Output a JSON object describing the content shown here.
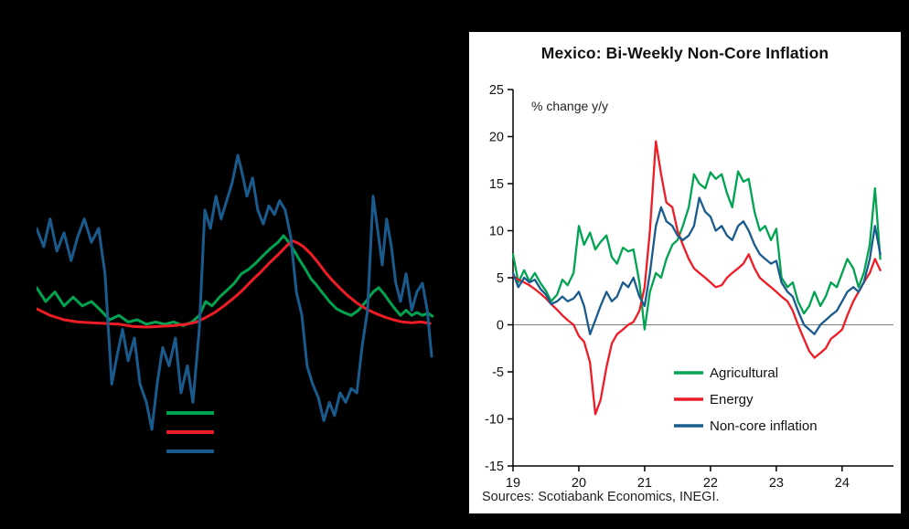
{
  "page": {
    "background_color": "#000000"
  },
  "chart_data": [
    {
      "type": "line",
      "panel": "right",
      "title": "Mexico: Bi-Weekly Non-Core Inflation",
      "ylabel_annotation": "% change y/y",
      "source": "Sources: Scotiabank Economics, INEGI.",
      "x_tick_labels": [
        "19",
        "20",
        "21",
        "22",
        "23",
        "24"
      ],
      "y_ticks": [
        25,
        20,
        15,
        10,
        5,
        0,
        -5,
        -10,
        -15
      ],
      "ylim": [
        -15,
        25
      ],
      "xlim": [
        19,
        24.78
      ],
      "grid": false,
      "zero_line": true,
      "legend_position": "inside-lower-right",
      "x": [
        19.0,
        19.08,
        19.17,
        19.25,
        19.33,
        19.42,
        19.5,
        19.58,
        19.67,
        19.75,
        19.83,
        19.92,
        20.0,
        20.08,
        20.17,
        20.25,
        20.33,
        20.42,
        20.5,
        20.58,
        20.67,
        20.75,
        20.83,
        20.92,
        21.0,
        21.08,
        21.17,
        21.25,
        21.33,
        21.42,
        21.5,
        21.58,
        21.67,
        21.75,
        21.83,
        21.92,
        22.0,
        22.08,
        22.17,
        22.25,
        22.33,
        22.42,
        22.5,
        22.58,
        22.67,
        22.75,
        22.83,
        22.92,
        23.0,
        23.08,
        23.17,
        23.25,
        23.33,
        23.42,
        23.5,
        23.58,
        23.67,
        23.75,
        23.83,
        23.92,
        24.0,
        24.08,
        24.17,
        24.25,
        24.33,
        24.42,
        24.5,
        24.58
      ],
      "series": [
        {
          "name": "Agricultural",
          "color": "#00A350",
          "values": [
            7.5,
            4.5,
            5.8,
            4.6,
            5.5,
            4.4,
            3.6,
            2.5,
            3.2,
            4.8,
            4.2,
            5.5,
            10.5,
            8.5,
            9.8,
            8.0,
            8.8,
            9.5,
            7.2,
            6.5,
            8.2,
            7.8,
            8.0,
            4.5,
            -0.5,
            3.5,
            5.5,
            5.0,
            7.0,
            8.5,
            9.0,
            10.5,
            12.5,
            16.0,
            15.0,
            14.5,
            16.2,
            15.5,
            16.0,
            14.0,
            12.5,
            16.3,
            15.2,
            15.5,
            12.0,
            10.0,
            10.5,
            9.0,
            10.2,
            5.0,
            4.0,
            4.5,
            2.5,
            1.2,
            2.0,
            3.5,
            2.0,
            3.0,
            4.5,
            4.0,
            5.5,
            7.0,
            6.0,
            4.0,
            5.5,
            8.5,
            14.5,
            7.0
          ]
        },
        {
          "name": "Energy",
          "color": "#EE1C25",
          "values": [
            5.2,
            4.8,
            4.5,
            4.2,
            3.8,
            3.3,
            2.8,
            2.2,
            1.6,
            1.0,
            0.5,
            0.0,
            -1.2,
            -1.8,
            -4.0,
            -9.5,
            -8.0,
            -4.5,
            -2.0,
            -1.0,
            -0.5,
            0.0,
            0.3,
            1.5,
            4.0,
            10.0,
            19.5,
            16.0,
            13.0,
            12.5,
            10.0,
            8.5,
            7.0,
            6.0,
            5.5,
            5.0,
            4.5,
            4.0,
            4.2,
            5.0,
            5.5,
            6.0,
            6.5,
            7.5,
            6.0,
            5.0,
            4.5,
            4.0,
            3.5,
            3.0,
            2.5,
            1.5,
            0.0,
            -1.5,
            -2.8,
            -3.5,
            -3.0,
            -2.5,
            -1.5,
            -1.0,
            -0.5,
            1.0,
            2.5,
            3.5,
            4.5,
            5.5,
            7.0,
            5.8
          ]
        },
        {
          "name": "Non-core inflation",
          "color": "#1A5B8D",
          "values": [
            5.5,
            4.0,
            5.0,
            4.5,
            4.8,
            3.8,
            3.2,
            2.2,
            2.5,
            3.0,
            2.5,
            2.8,
            3.5,
            2.0,
            -1.0,
            0.5,
            2.0,
            3.5,
            2.5,
            3.0,
            4.5,
            4.0,
            5.0,
            3.0,
            2.0,
            5.5,
            10.5,
            12.5,
            11.0,
            10.5,
            9.5,
            9.0,
            9.5,
            10.5,
            13.5,
            12.0,
            11.5,
            10.0,
            10.5,
            9.5,
            9.0,
            10.5,
            11.0,
            10.0,
            8.5,
            7.5,
            7.0,
            6.5,
            6.8,
            4.5,
            3.5,
            3.0,
            1.5,
            0.0,
            -0.5,
            -1.0,
            0.0,
            0.5,
            1.0,
            1.5,
            2.5,
            3.5,
            4.0,
            3.5,
            4.5,
            7.0,
            10.5,
            7.5
          ]
        }
      ]
    },
    {
      "type": "line",
      "panel": "left",
      "title": "",
      "axis_text_visible": false,
      "ylim": [
        -17.5,
        25
      ],
      "xlim": [
        0,
        100
      ],
      "series": [
        {
          "name": "",
          "color": "#00A350",
          "points": [
            [
              0,
              4.4
            ],
            [
              2.3,
              2.5
            ],
            [
              4.6,
              3.8
            ],
            [
              6.9,
              1.9
            ],
            [
              9.2,
              3.1
            ],
            [
              11.5,
              1.9
            ],
            [
              13.8,
              2.5
            ],
            [
              16.1,
              1.3
            ],
            [
              18.4,
              0
            ],
            [
              20.7,
              0.6
            ],
            [
              23,
              -0.3
            ],
            [
              25.3,
              0
            ],
            [
              27.6,
              -0.6
            ],
            [
              29.9,
              -0.3
            ],
            [
              32.2,
              -0.6
            ],
            [
              34.5,
              -0.3
            ],
            [
              36.8,
              -0.8
            ],
            [
              39.1,
              -0.3
            ],
            [
              40.9,
              0.6
            ],
            [
              42.5,
              2.5
            ],
            [
              44.1,
              1.9
            ],
            [
              46,
              3.1
            ],
            [
              47.8,
              4
            ],
            [
              49.7,
              5
            ],
            [
              51.5,
              6.3
            ],
            [
              53.3,
              6.9
            ],
            [
              55.2,
              7.8
            ],
            [
              57,
              8.8
            ],
            [
              58.9,
              9.8
            ],
            [
              60.7,
              10.6
            ],
            [
              62.1,
              11.5
            ],
            [
              63.4,
              10.6
            ],
            [
              64.8,
              9.4
            ],
            [
              66.2,
              8.1
            ],
            [
              67.6,
              6.9
            ],
            [
              69,
              5.6
            ],
            [
              70.3,
              4.8
            ],
            [
              71.7,
              3.8
            ],
            [
              73.6,
              2.5
            ],
            [
              75.4,
              1.5
            ],
            [
              77.2,
              1
            ],
            [
              79.1,
              0.6
            ],
            [
              80.9,
              1.3
            ],
            [
              82.8,
              2.5
            ],
            [
              84.6,
              3.8
            ],
            [
              86,
              4.4
            ],
            [
              87.4,
              3.5
            ],
            [
              88.7,
              2.5
            ],
            [
              90.1,
              1.5
            ],
            [
              91.5,
              0.6
            ],
            [
              92.9,
              1.3
            ],
            [
              94.3,
              0.6
            ],
            [
              95.6,
              1
            ],
            [
              97,
              0.6
            ],
            [
              98.4,
              0.9
            ],
            [
              99.5,
              0.5
            ]
          ]
        },
        {
          "name": "",
          "color": "#EE1C25",
          "points": [
            [
              0,
              1.5
            ],
            [
              3.4,
              0.6
            ],
            [
              6.9,
              0
            ],
            [
              10.3,
              -0.3
            ],
            [
              13.8,
              -0.4
            ],
            [
              17.2,
              -0.5
            ],
            [
              20.7,
              -0.6
            ],
            [
              24.1,
              -0.9
            ],
            [
              27.6,
              -1
            ],
            [
              31,
              -0.9
            ],
            [
              34.5,
              -0.8
            ],
            [
              37.9,
              -0.6
            ],
            [
              40.2,
              -0.3
            ],
            [
              42.5,
              0.3
            ],
            [
              44.8,
              1
            ],
            [
              47.1,
              1.9
            ],
            [
              49.4,
              2.9
            ],
            [
              51.7,
              4
            ],
            [
              54,
              5.3
            ],
            [
              56.3,
              6.5
            ],
            [
              58.6,
              7.8
            ],
            [
              60.9,
              9
            ],
            [
              63.2,
              10.3
            ],
            [
              64.4,
              10.8
            ],
            [
              65.7,
              10.5
            ],
            [
              67.1,
              10
            ],
            [
              69,
              9
            ],
            [
              70.8,
              7.8
            ],
            [
              72.6,
              6.5
            ],
            [
              74.5,
              5.3
            ],
            [
              76.3,
              4.3
            ],
            [
              78.2,
              3.3
            ],
            [
              80.5,
              2.3
            ],
            [
              82.8,
              1.5
            ],
            [
              85.1,
              0.9
            ],
            [
              87.4,
              0.4
            ],
            [
              89.7,
              0
            ],
            [
              92,
              -0.3
            ],
            [
              94.3,
              -0.4
            ],
            [
              96.6,
              -0.3
            ],
            [
              98.9,
              -0.5
            ]
          ]
        },
        {
          "name": "",
          "color": "#1A5B8D",
          "points": [
            [
              0,
              12.5
            ],
            [
              1.8,
              10
            ],
            [
              3.4,
              13.8
            ],
            [
              5.1,
              9.4
            ],
            [
              6.9,
              11.9
            ],
            [
              8.7,
              8.1
            ],
            [
              10.3,
              11.3
            ],
            [
              12,
              13.8
            ],
            [
              13.8,
              10.6
            ],
            [
              15.6,
              12.5
            ],
            [
              17.2,
              6.3
            ],
            [
              18.9,
              -8.8
            ],
            [
              20.2,
              -5
            ],
            [
              21.6,
              -1.3
            ],
            [
              23,
              -5.6
            ],
            [
              24.6,
              -2.5
            ],
            [
              26,
              -8.8
            ],
            [
              27.6,
              -11.3
            ],
            [
              29,
              -15
            ],
            [
              30.3,
              -8.8
            ],
            [
              31.7,
              -3.8
            ],
            [
              33.3,
              -6.3
            ],
            [
              34.9,
              -2.5
            ],
            [
              36.3,
              -10
            ],
            [
              37.9,
              -6.3
            ],
            [
              39.3,
              -11.3
            ],
            [
              40.9,
              -1.3
            ],
            [
              42.3,
              15
            ],
            [
              43.7,
              12.5
            ],
            [
              45.1,
              16.9
            ],
            [
              46.4,
              13.8
            ],
            [
              47.8,
              16.3
            ],
            [
              49.2,
              18.8
            ],
            [
              50.6,
              22.5
            ],
            [
              51.7,
              20
            ],
            [
              52.9,
              16.9
            ],
            [
              54.3,
              19.4
            ],
            [
              55.6,
              15
            ],
            [
              57,
              13.1
            ],
            [
              58.4,
              15.6
            ],
            [
              59.8,
              14.4
            ],
            [
              61.1,
              16.3
            ],
            [
              62.5,
              15
            ],
            [
              63.9,
              11.3
            ],
            [
              65.3,
              3.8
            ],
            [
              66.7,
              0.6
            ],
            [
              68,
              -6.3
            ],
            [
              69.4,
              -8.8
            ],
            [
              70.8,
              -10.6
            ],
            [
              72.2,
              -13.8
            ],
            [
              73.6,
              -11.3
            ],
            [
              74.9,
              -13.1
            ],
            [
              76.3,
              -10
            ],
            [
              77.7,
              -11.3
            ],
            [
              79.1,
              -9.4
            ],
            [
              80.5,
              -10
            ],
            [
              81.8,
              -3.8
            ],
            [
              83.2,
              1.3
            ],
            [
              84.6,
              16.9
            ],
            [
              85.7,
              12.5
            ],
            [
              86.9,
              7.5
            ],
            [
              88,
              13.8
            ],
            [
              89.2,
              10
            ],
            [
              90.3,
              5
            ],
            [
              91.5,
              2.5
            ],
            [
              92.9,
              6.3
            ],
            [
              94.3,
              1.3
            ],
            [
              95.6,
              3.8
            ],
            [
              97,
              5
            ],
            [
              98.2,
              1.3
            ],
            [
              99.3,
              -5
            ]
          ]
        }
      ]
    }
  ]
}
